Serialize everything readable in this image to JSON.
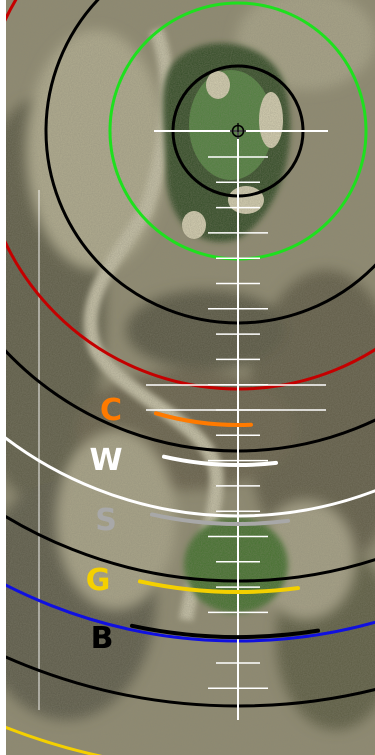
{
  "map": {
    "view": "satellite",
    "pin": {
      "icon": "crosshair-pin-icon"
    },
    "colors": {
      "green_ring": "#1ee01e",
      "red_ring": "#c40000",
      "black_ring": "#000000",
      "white_ring": "#ffffff",
      "blue_ring": "#1010e0",
      "yellow_ring": "#f4d000",
      "centerline": "#ffffff"
    }
  },
  "tee_markers": [
    {
      "label": "C",
      "color": "#ff7a00"
    },
    {
      "label": "W",
      "color": "#ffffff"
    },
    {
      "label": "S",
      "color": "#a8a8a8"
    },
    {
      "label": "G",
      "color": "#f4d000"
    },
    {
      "label": "B",
      "color": "#000000"
    }
  ]
}
